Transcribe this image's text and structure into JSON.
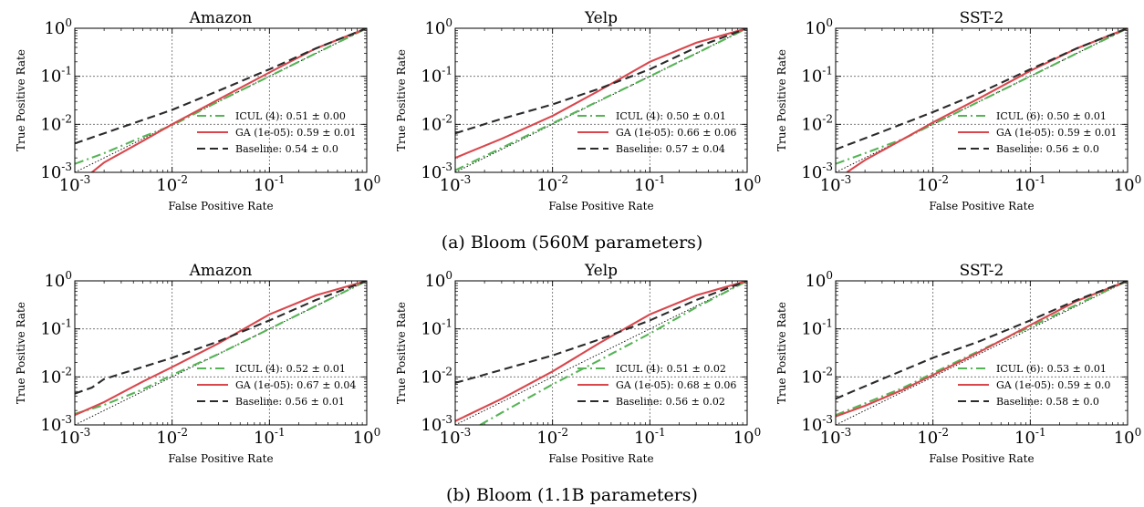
{
  "figure": {
    "captions": [
      "(a) Bloom (560M parameters)",
      "(b) Bloom (1.1B parameters)"
    ]
  },
  "colors": {
    "icul": "#55b455",
    "ga": "#d9474d",
    "baseline": "#2b2b2b",
    "chance": "#000000",
    "grid": "#666666"
  },
  "chart_data": [
    {
      "type": "line",
      "row": 0,
      "col": 0,
      "title": "Amazon",
      "xlabel": "False Positive Rate",
      "ylabel": "True Positive Rate",
      "xscale": "log",
      "yscale": "log",
      "xlim": [
        0.001,
        1
      ],
      "ylim": [
        0.001,
        1
      ],
      "xticks": [
        "10^-3",
        "10^-2",
        "10^-1",
        "10^0"
      ],
      "yticks": [
        "10^-3",
        "10^-2",
        "10^-1",
        "10^0"
      ],
      "grid": true,
      "legend": "lower-right",
      "series": [
        {
          "name": "ICUL (4): 0.51 ± 0.00",
          "style": "dashdot",
          "color": "#55b455",
          "x": [
            0.001,
            0.002,
            0.005,
            0.01,
            0.03,
            0.1,
            0.3,
            1
          ],
          "y": [
            0.0015,
            0.0025,
            0.0055,
            0.0095,
            0.03,
            0.1,
            0.3,
            1
          ]
        },
        {
          "name": "GA (1e-05): 0.59 ± 0.01",
          "style": "solid",
          "color": "#d9474d",
          "x": [
            0.0012,
            0.0015,
            0.002,
            0.005,
            0.01,
            0.03,
            0.1,
            0.3,
            1
          ],
          "y": [
            0.0008,
            0.001,
            0.0016,
            0.0045,
            0.01,
            0.033,
            0.12,
            0.38,
            1
          ]
        },
        {
          "name": "Baseline: 0.54 ± 0.0",
          "style": "dashed",
          "color": "#2b2b2b",
          "x": [
            0.001,
            0.002,
            0.01,
            0.03,
            0.1,
            0.3,
            1
          ],
          "y": [
            0.004,
            0.0065,
            0.02,
            0.05,
            0.14,
            0.38,
            1
          ]
        }
      ]
    },
    {
      "type": "line",
      "row": 0,
      "col": 1,
      "title": "Yelp",
      "xlabel": "False Positive Rate",
      "ylabel": "True Positive Rate",
      "xscale": "log",
      "yscale": "log",
      "xlim": [
        0.001,
        1
      ],
      "ylim": [
        0.001,
        1
      ],
      "xticks": [
        "10^-3",
        "10^-2",
        "10^-1",
        "10^0"
      ],
      "yticks": [
        "10^-3",
        "10^-2",
        "10^-1",
        "10^0"
      ],
      "grid": true,
      "legend": "lower-right",
      "series": [
        {
          "name": "ICUL (4): 0.50 ± 0.01",
          "style": "dashdot",
          "color": "#55b455",
          "x": [
            0.001,
            0.01,
            0.1,
            1
          ],
          "y": [
            0.0011,
            0.0105,
            0.1,
            1
          ]
        },
        {
          "name": "GA (1e-05): 0.66 ± 0.06",
          "style": "solid",
          "color": "#d9474d",
          "x": [
            0.001,
            0.003,
            0.01,
            0.03,
            0.1,
            0.3,
            1
          ],
          "y": [
            0.002,
            0.005,
            0.015,
            0.05,
            0.2,
            0.5,
            1
          ]
        },
        {
          "name": "Baseline: 0.57 ± 0.04",
          "style": "dashed",
          "color": "#2b2b2b",
          "x": [
            0.001,
            0.003,
            0.01,
            0.03,
            0.1,
            0.3,
            1
          ],
          "y": [
            0.0065,
            0.013,
            0.026,
            0.055,
            0.14,
            0.4,
            1
          ]
        }
      ]
    },
    {
      "type": "line",
      "row": 0,
      "col": 2,
      "title": "SST-2",
      "xlabel": "False Positive Rate",
      "ylabel": "True Positive Rate",
      "xscale": "log",
      "yscale": "log",
      "xlim": [
        0.001,
        1
      ],
      "ylim": [
        0.001,
        1
      ],
      "xticks": [
        "10^-3",
        "10^-2",
        "10^-1",
        "10^0"
      ],
      "yticks": [
        "10^-3",
        "10^-2",
        "10^-1",
        "10^0"
      ],
      "grid": true,
      "legend": "lower-right",
      "series": [
        {
          "name": "ICUL (6): 0.50 ± 0.01",
          "style": "dashdot",
          "color": "#55b455",
          "x": [
            0.001,
            0.002,
            0.005,
            0.01,
            0.1,
            1
          ],
          "y": [
            0.0015,
            0.0025,
            0.005,
            0.01,
            0.1,
            1
          ]
        },
        {
          "name": "GA (1e-05): 0.59 ± 0.01",
          "style": "solid",
          "color": "#d9474d",
          "x": [
            0.0013,
            0.002,
            0.005,
            0.01,
            0.03,
            0.1,
            0.3,
            1
          ],
          "y": [
            0.001,
            0.0018,
            0.005,
            0.011,
            0.035,
            0.13,
            0.38,
            1
          ]
        },
        {
          "name": "Baseline: 0.56 ± 0.0",
          "style": "dashed",
          "color": "#2b2b2b",
          "x": [
            0.001,
            0.003,
            0.01,
            0.03,
            0.1,
            0.3,
            1
          ],
          "y": [
            0.003,
            0.007,
            0.018,
            0.045,
            0.14,
            0.38,
            1
          ]
        }
      ]
    },
    {
      "type": "line",
      "row": 1,
      "col": 0,
      "title": "Amazon",
      "xlabel": "False Positive Rate",
      "ylabel": "True Positive Rate",
      "xscale": "log",
      "yscale": "log",
      "xlim": [
        0.001,
        1
      ],
      "ylim": [
        0.001,
        1
      ],
      "xticks": [
        "10^-3",
        "10^-2",
        "10^-1",
        "10^0"
      ],
      "yticks": [
        "10^-3",
        "10^-2",
        "10^-1",
        "10^0"
      ],
      "grid": true,
      "legend": "lower-right",
      "series": [
        {
          "name": "ICUL (4): 0.52 ± 0.01",
          "style": "dashdot",
          "color": "#55b455",
          "x": [
            0.001,
            0.002,
            0.005,
            0.01,
            0.03,
            0.1,
            0.3,
            1
          ],
          "y": [
            0.0017,
            0.0026,
            0.0055,
            0.011,
            0.03,
            0.1,
            0.3,
            1
          ]
        },
        {
          "name": "GA (1e-05): 0.67 ± 0.04",
          "style": "solid",
          "color": "#d9474d",
          "x": [
            0.001,
            0.002,
            0.005,
            0.01,
            0.03,
            0.1,
            0.3,
            1
          ],
          "y": [
            0.0016,
            0.003,
            0.008,
            0.016,
            0.05,
            0.2,
            0.5,
            1
          ]
        },
        {
          "name": "Baseline: 0.56 ± 0.01",
          "style": "dashed",
          "color": "#2b2b2b",
          "x": [
            0.001,
            0.0015,
            0.002,
            0.01,
            0.03,
            0.1,
            0.3,
            1
          ],
          "y": [
            0.0045,
            0.006,
            0.009,
            0.025,
            0.055,
            0.15,
            0.4,
            1
          ]
        }
      ]
    },
    {
      "type": "line",
      "row": 1,
      "col": 1,
      "title": "Yelp",
      "xlabel": "False Positive Rate",
      "ylabel": "True Positive Rate",
      "xscale": "log",
      "yscale": "log",
      "xlim": [
        0.001,
        1
      ],
      "ylim": [
        0.001,
        1
      ],
      "xticks": [
        "10^-3",
        "10^-2",
        "10^-1",
        "10^0"
      ],
      "yticks": [
        "10^-3",
        "10^-2",
        "10^-1",
        "10^0"
      ],
      "grid": true,
      "legend": "lower-right",
      "series": [
        {
          "name": "ICUL (4): 0.51 ± 0.02",
          "style": "dashdot",
          "color": "#55b455",
          "x": [
            0.0018,
            0.003,
            0.01,
            0.03,
            0.1,
            0.3,
            1
          ],
          "y": [
            0.001,
            0.0018,
            0.007,
            0.022,
            0.08,
            0.28,
            1
          ]
        },
        {
          "name": "GA (1e-05): 0.68 ± 0.06",
          "style": "solid",
          "color": "#d9474d",
          "x": [
            0.001,
            0.003,
            0.01,
            0.03,
            0.1,
            0.3,
            1
          ],
          "y": [
            0.0012,
            0.0035,
            0.013,
            0.05,
            0.2,
            0.5,
            1
          ]
        },
        {
          "name": "Baseline: 0.56 ± 0.02",
          "style": "dashed",
          "color": "#2b2b2b",
          "x": [
            0.001,
            0.003,
            0.01,
            0.03,
            0.1,
            0.3,
            1
          ],
          "y": [
            0.0075,
            0.014,
            0.028,
            0.06,
            0.15,
            0.4,
            1
          ]
        }
      ]
    },
    {
      "type": "line",
      "row": 1,
      "col": 2,
      "title": "SST-2",
      "xlabel": "False Positive Rate",
      "ylabel": "True Positive Rate",
      "xscale": "log",
      "yscale": "log",
      "xlim": [
        0.001,
        1
      ],
      "ylim": [
        0.001,
        1
      ],
      "xticks": [
        "10^-3",
        "10^-2",
        "10^-1",
        "10^0"
      ],
      "yticks": [
        "10^-3",
        "10^-2",
        "10^-1",
        "10^0"
      ],
      "grid": true,
      "legend": "lower-right",
      "series": [
        {
          "name": "ICUL (6): 0.53 ± 0.01",
          "style": "dashdot",
          "color": "#55b455",
          "x": [
            0.001,
            0.002,
            0.005,
            0.01,
            0.03,
            0.1,
            0.3,
            1
          ],
          "y": [
            0.0016,
            0.0028,
            0.006,
            0.012,
            0.035,
            0.11,
            0.32,
            1
          ]
        },
        {
          "name": "GA (1e-05): 0.59 ± 0.0",
          "style": "solid",
          "color": "#d9474d",
          "x": [
            0.001,
            0.002,
            0.005,
            0.01,
            0.03,
            0.1,
            0.3,
            1
          ],
          "y": [
            0.0015,
            0.0025,
            0.0055,
            0.011,
            0.033,
            0.12,
            0.38,
            1
          ]
        },
        {
          "name": "Baseline: 0.58 ± 0.0",
          "style": "dashed",
          "color": "#2b2b2b",
          "x": [
            0.001,
            0.0015,
            0.003,
            0.01,
            0.03,
            0.1,
            0.3,
            1
          ],
          "y": [
            0.0035,
            0.005,
            0.009,
            0.025,
            0.055,
            0.15,
            0.4,
            1
          ]
        }
      ]
    }
  ]
}
